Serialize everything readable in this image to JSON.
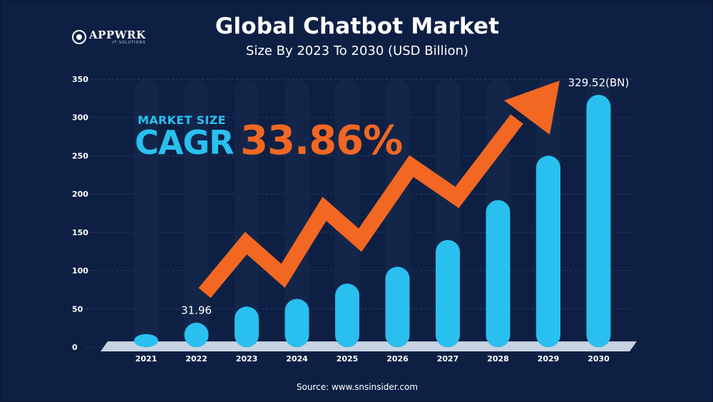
{
  "header": {
    "title": "Global Chatbot Market",
    "subtitle": "Size By 2023 To 2030 (USD Billion)"
  },
  "logo": {
    "name": "APPWRK",
    "tagline": "IT SOLUTIONS"
  },
  "callout": {
    "top_label": "MARKET SIZE",
    "cagr_label": "CAGR",
    "cagr_value": "33.86%"
  },
  "source": "Source: www.snsinsider.com",
  "colors": {
    "background": "#0d2044",
    "bar": "#29c0ef",
    "track": "#13264a",
    "arrow": "#f26722",
    "floor": "#c7d3e3"
  },
  "chart_data": {
    "type": "bar",
    "title": "Global Chatbot Market",
    "subtitle": "Size By 2023 To 2030 (USD Billion)",
    "xlabel": "",
    "ylabel": "",
    "categories": [
      "2021",
      "2022",
      "2023",
      "2024",
      "2025",
      "2026",
      "2027",
      "2028",
      "2029",
      "2030"
    ],
    "values": [
      17,
      31.96,
      53,
      63,
      83,
      105,
      140,
      192,
      250,
      329.52
    ],
    "ylim": [
      0,
      350
    ],
    "yticks": [
      0,
      50,
      100,
      150,
      200,
      250,
      300,
      350
    ],
    "grid": true,
    "data_labels": [
      {
        "category": "2022",
        "text": "31.96"
      },
      {
        "category": "2030",
        "text": "329.52(BN)"
      }
    ],
    "trend_arrow": true
  }
}
